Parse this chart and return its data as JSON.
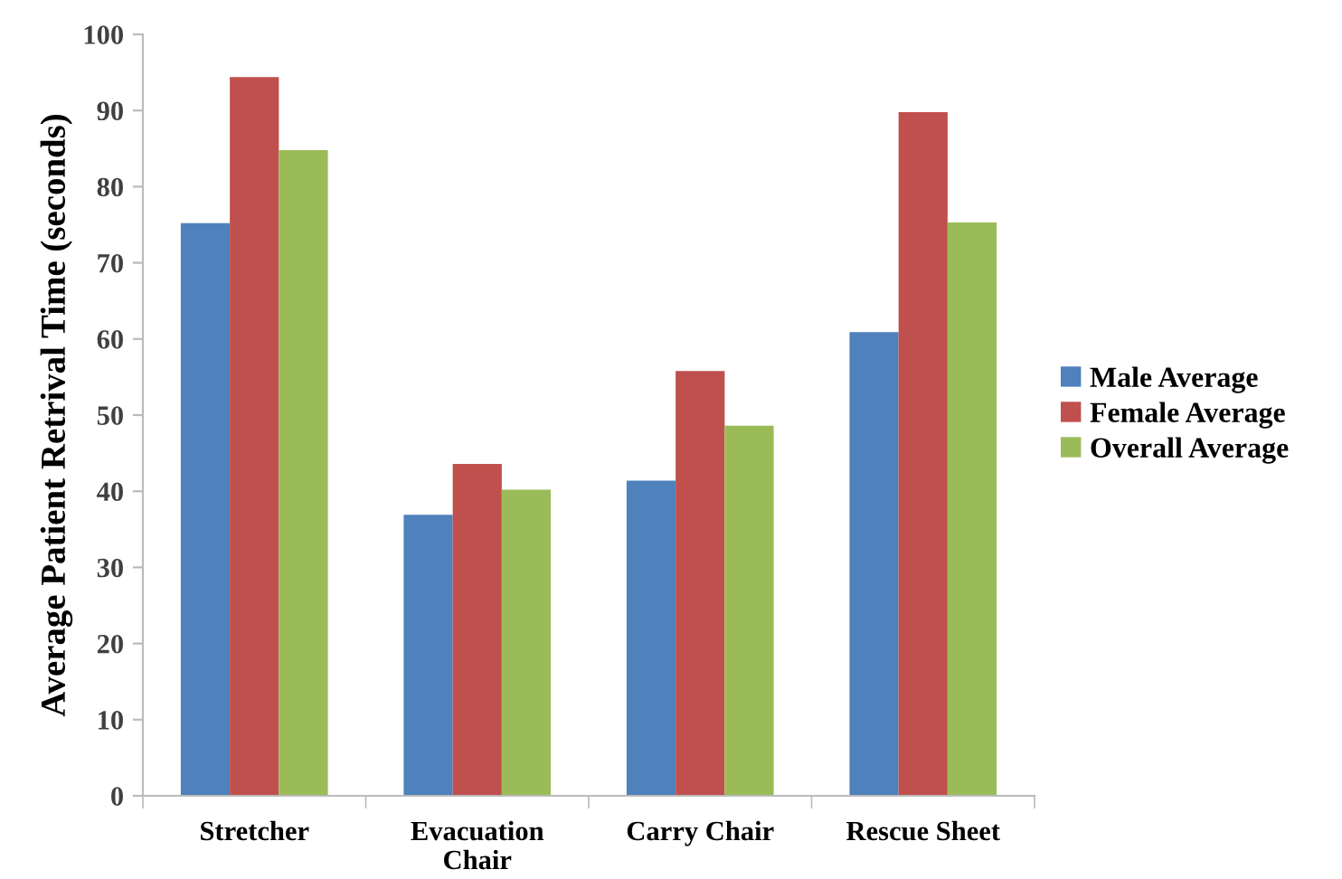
{
  "chart_data": {
    "type": "bar",
    "ylabel": "Average Patient Retrival Time (seconds)",
    "categories": [
      "Stretcher",
      "Evacuation\nChair",
      "Carry Chair",
      "Rescue Sheet"
    ],
    "series": [
      {
        "name": "Male Average",
        "color": "#4f81bd",
        "values": [
          75.2,
          36.9,
          41.4,
          60.9
        ]
      },
      {
        "name": "Female Average",
        "color": "#c0504d",
        "values": [
          94.4,
          43.6,
          55.8,
          89.8
        ]
      },
      {
        "name": "Overall Average",
        "color": "#9bbb59",
        "values": [
          84.8,
          40.2,
          48.6,
          75.3
        ]
      }
    ],
    "ylim": [
      0,
      100
    ],
    "yticks": [
      0,
      10,
      20,
      30,
      40,
      50,
      60,
      70,
      80,
      90,
      100
    ],
    "grid": false,
    "legend": "right"
  }
}
